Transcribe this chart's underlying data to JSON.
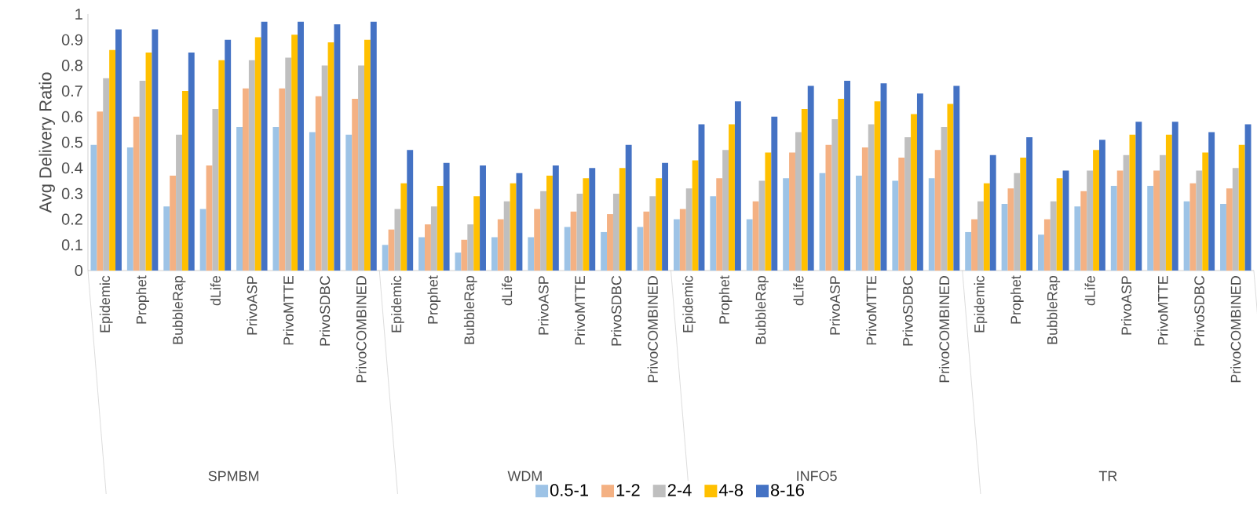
{
  "chart_data": {
    "type": "bar",
    "ylabel": "Avg Delivery Ratio",
    "categories": [
      "Epidemic",
      "Prophet",
      "BubbleRap",
      "dLife",
      "PrivoASP",
      "PrivoMTTE",
      "PrivoSDBC",
      "PrivoCOMBINED",
      "Epidemic",
      "Prophet",
      "BubbleRap",
      "dLife",
      "PrivoASP",
      "PrivoMTTE",
      "PrivoSDBC",
      "PrivoCOMBINED",
      "Epidemic",
      "Prophet",
      "BubbleRap",
      "dLife",
      "PrivoASP",
      "PrivoMTTE",
      "PrivoSDBC",
      "PrivoCOMBINED",
      "Epidemic",
      "Prophet",
      "BubbleRap",
      "dLife",
      "PrivoASP",
      "PrivoMTTE",
      "PrivoSDBC",
      "PrivoCOMBINED"
    ],
    "series": [
      {
        "name": "0.5-1",
        "color": "#9dc3e6",
        "values": [
          0.49,
          0.48,
          0.25,
          0.24,
          0.56,
          0.56,
          0.54,
          0.53,
          0.1,
          0.13,
          0.07,
          0.13,
          0.13,
          0.17,
          0.15,
          0.17,
          0.2,
          0.29,
          0.2,
          0.36,
          0.38,
          0.37,
          0.35,
          0.36,
          0.15,
          0.26,
          0.14,
          0.25,
          0.33,
          0.33,
          0.27,
          0.26
        ]
      },
      {
        "name": "1-2",
        "color": "#f4b183",
        "values": [
          0.62,
          0.6,
          0.37,
          0.41,
          0.71,
          0.71,
          0.68,
          0.67,
          0.16,
          0.18,
          0.12,
          0.2,
          0.24,
          0.23,
          0.22,
          0.23,
          0.24,
          0.36,
          0.27,
          0.46,
          0.49,
          0.48,
          0.44,
          0.47,
          0.2,
          0.32,
          0.2,
          0.31,
          0.39,
          0.39,
          0.34,
          0.32
        ]
      },
      {
        "name": "2-4",
        "color": "#bfbfbf",
        "values": [
          0.75,
          0.74,
          0.53,
          0.63,
          0.82,
          0.83,
          0.8,
          0.8,
          0.24,
          0.25,
          0.18,
          0.27,
          0.31,
          0.3,
          0.3,
          0.29,
          0.32,
          0.47,
          0.35,
          0.54,
          0.59,
          0.57,
          0.52,
          0.56,
          0.27,
          0.38,
          0.27,
          0.39,
          0.45,
          0.45,
          0.39,
          0.4
        ]
      },
      {
        "name": "4-8",
        "color": "#ffc000",
        "values": [
          0.86,
          0.85,
          0.7,
          0.82,
          0.91,
          0.92,
          0.89,
          0.9,
          0.34,
          0.33,
          0.29,
          0.34,
          0.37,
          0.36,
          0.4,
          0.36,
          0.43,
          0.57,
          0.46,
          0.63,
          0.67,
          0.66,
          0.61,
          0.65,
          0.34,
          0.44,
          0.36,
          0.47,
          0.53,
          0.53,
          0.46,
          0.49
        ]
      },
      {
        "name": "8-16",
        "color": "#4472c4",
        "values": [
          0.94,
          0.94,
          0.85,
          0.9,
          0.97,
          0.97,
          0.96,
          0.97,
          0.47,
          0.42,
          0.41,
          0.38,
          0.41,
          0.4,
          0.49,
          0.42,
          0.57,
          0.66,
          0.6,
          0.72,
          0.74,
          0.73,
          0.69,
          0.72,
          0.45,
          0.52,
          0.39,
          0.51,
          0.58,
          0.58,
          0.54,
          0.57
        ]
      }
    ],
    "annotations": [
      "SPMBM",
      "WDM",
      "INFO5",
      "TR"
    ],
    "ylim": [
      0,
      1
    ],
    "yticks": [
      0,
      0.1,
      0.2,
      0.3,
      0.4,
      0.5,
      0.6,
      0.7,
      0.8,
      0.9,
      1
    ],
    "legend": "bottom"
  }
}
